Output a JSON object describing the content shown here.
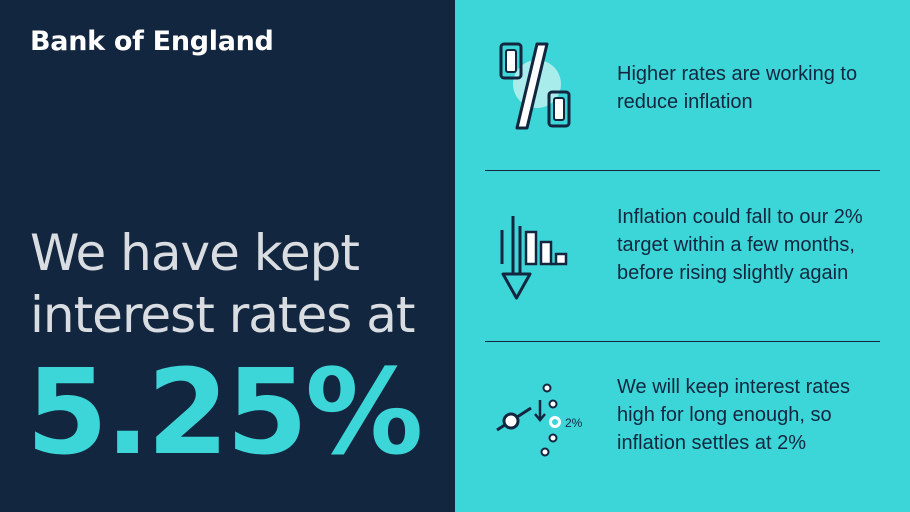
{
  "brand": "Bank of England",
  "headline": "We have kept interest rates at",
  "rate": "5.25%",
  "points": [
    {
      "icon": "percent-icon",
      "text": "Higher rates are working to reduce inflation"
    },
    {
      "icon": "falling-bars-icon",
      "text": "Inflation could fall to our 2% target within a few months, before rising slightly again"
    },
    {
      "icon": "target-path-icon",
      "icon_label": "2%",
      "text": "We will keep interest rates high for long enough, so inflation settles at 2%"
    }
  ],
  "colors": {
    "navy": "#13263f",
    "teal": "#3cd6d8",
    "white": "#ffffff"
  }
}
